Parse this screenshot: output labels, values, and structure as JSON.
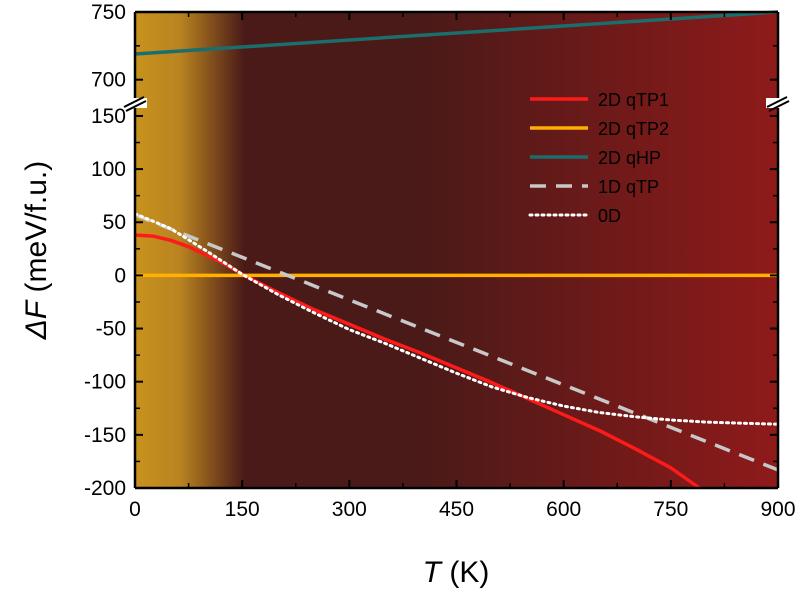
{
  "chart_data": {
    "type": "line",
    "xlabel": {
      "symbol": "T",
      "unit": " (K)"
    },
    "ylabel": {
      "symbol": "ΔF",
      "unit": " (meV/f.u.)"
    },
    "xlim": [
      0,
      900
    ],
    "x_ticks": [
      "0",
      "150",
      "300",
      "450",
      "600",
      "750",
      "900"
    ],
    "y_axis_broken": true,
    "y_upper_range": [
      685,
      750
    ],
    "y_upper_ticks": [
      "700",
      "750"
    ],
    "y_lower_range": [
      -200,
      165
    ],
    "y_lower_ticks": [
      "-200",
      "-150",
      "-100",
      "-50",
      "0",
      "50",
      "100",
      "150"
    ],
    "background_gradient": [
      "#c8921e",
      "#4a1a18",
      "#8f1a1a"
    ],
    "legend_position": "top-right",
    "series": [
      {
        "name": "2D qTP1",
        "color": "#ff1a1a",
        "style": "solid",
        "x": [
          0,
          25,
          50,
          75,
          100,
          125,
          150,
          200,
          250,
          300,
          350,
          400,
          450,
          500,
          550,
          600,
          650,
          700,
          750,
          790
        ],
        "y": [
          38,
          37,
          33,
          27,
          19,
          11,
          1,
          -16,
          -32,
          -46,
          -60,
          -73,
          -87,
          -101,
          -116,
          -131,
          -146,
          -163,
          -181,
          -200
        ]
      },
      {
        "name": "2D qTP2",
        "color": "#ffb000",
        "style": "solid",
        "x": [
          0,
          900
        ],
        "y": [
          0,
          0
        ]
      },
      {
        "name": "2D qHP",
        "color": "#1a6e6e",
        "style": "solid",
        "x": [
          0,
          900
        ],
        "y": [
          719,
          750
        ]
      },
      {
        "name": "1D qTP",
        "color": "#c8c8c8",
        "style": "dashed",
        "x": [
          0,
          900
        ],
        "y": [
          57,
          -183
        ]
      },
      {
        "name": "0D",
        "color": "#ffffff",
        "style": "dotted",
        "x": [
          0,
          50,
          100,
          150,
          200,
          250,
          300,
          350,
          400,
          450,
          500,
          550,
          600,
          650,
          700,
          750,
          800,
          850,
          900
        ],
        "y": [
          58,
          44,
          23,
          1,
          -18,
          -35,
          -51,
          -64,
          -78,
          -92,
          -105,
          -115,
          -123,
          -129,
          -133,
          -136,
          -138,
          -139,
          -140
        ]
      }
    ]
  }
}
